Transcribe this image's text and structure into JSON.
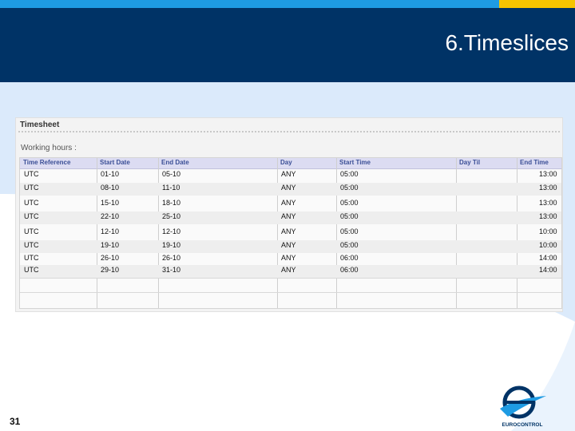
{
  "slide": {
    "title": "6.Timeslices",
    "page_number": "31"
  },
  "timesheet": {
    "title": "Timesheet",
    "working_hours_label": "Working hours :",
    "columns": [
      "Time Reference",
      "Start Date",
      "End Date",
      "Day",
      "Start Time",
      "Day Til",
      "End Time"
    ],
    "rows": [
      [
        "UTC",
        "01-10",
        "05-10",
        "ANY",
        "05:00",
        "",
        "13:00"
      ],
      [
        "UTC",
        "08-10",
        "11-10",
        "ANY",
        "05:00",
        "",
        "13:00"
      ],
      [
        "UTC",
        "15-10",
        "18-10",
        "ANY",
        "05:00",
        "",
        "13:00"
      ],
      [
        "UTC",
        "22-10",
        "25-10",
        "ANY",
        "05:00",
        "",
        "13:00"
      ],
      [
        "UTC",
        "12-10",
        "12-10",
        "ANY",
        "05:00",
        "",
        "10:00"
      ],
      [
        "UTC",
        "19-10",
        "19-10",
        "ANY",
        "05:00",
        "",
        "10:00"
      ],
      [
        "UTC",
        "26-10",
        "26-10",
        "ANY",
        "06:00",
        "",
        "14:00"
      ],
      [
        "UTC",
        "29-10",
        "31-10",
        "ANY",
        "06:00",
        "",
        "14:00"
      ]
    ]
  },
  "logo": {
    "text": "EUROCONTROL",
    "colors": {
      "navy": "#003366",
      "blue": "#1e9be3"
    }
  }
}
